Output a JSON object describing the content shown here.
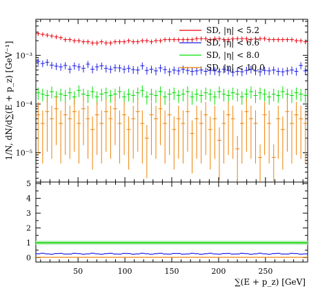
{
  "chart_data": [
    {
      "type": "scatter",
      "title": "",
      "ylabel": "1/N, dN/d∑(E + p_z) [GeV⁻¹]",
      "xlim": [
        5,
        295
      ],
      "ylim": [
        2.5e-06,
        0.0055
      ],
      "yscale": "log",
      "y_tick_labels": [
        "10⁻⁵",
        "10⁻⁴",
        "10⁻³"
      ],
      "legend_placement": "top-right",
      "series": [
        {
          "name": "SD, |η| < 5.2",
          "color": "#e8000b",
          "values": [
            0.0028,
            0.0027,
            0.0026,
            0.0025,
            0.0024,
            0.0023,
            0.0021,
            0.0021,
            0.002,
            0.002,
            0.0019,
            0.0019,
            0.0018,
            0.0018,
            0.0019,
            0.0018,
            0.0018,
            0.0019,
            0.0019,
            0.0019,
            0.002,
            0.0019,
            0.0019,
            0.002,
            0.002,
            0.0019,
            0.002,
            0.002,
            0.0021,
            0.0021,
            0.0021,
            0.0021,
            0.0021,
            0.0021,
            0.0021,
            0.0022,
            0.0022,
            0.0022,
            0.0021,
            0.0022,
            0.0022,
            0.0021,
            0.0021,
            0.0022,
            0.0022,
            0.0022,
            0.0022,
            0.0021,
            0.0022,
            0.0022,
            0.0022,
            0.0021,
            0.0021,
            0.0021,
            0.0021,
            0.0021,
            0.0021,
            0.002,
            0.002,
            0.0019
          ]
        },
        {
          "name": "SD, |η| < 6.6",
          "color": "#1a1ae6",
          "values": [
            0.00075,
            0.00068,
            0.00072,
            0.00063,
            0.0006,
            0.00058,
            0.00062,
            0.00052,
            0.00061,
            0.00058,
            0.00054,
            0.00066,
            0.00052,
            0.00058,
            0.00061,
            0.00054,
            0.00052,
            0.00056,
            0.00055,
            0.00052,
            0.00054,
            0.00051,
            0.0005,
            0.00061,
            0.00049,
            0.00052,
            0.00048,
            0.00055,
            0.00051,
            0.00046,
            0.0005,
            0.00048,
            0.00052,
            0.00049,
            0.00047,
            0.00048,
            0.0005,
            0.00047,
            0.00049,
            0.00048,
            0.00046,
            0.00052,
            0.00049,
            0.00045,
            0.00047,
            0.00046,
            0.00049,
            0.00052,
            0.00048,
            0.00046,
            0.00049,
            0.00048,
            0.0005,
            0.00047,
            0.00046,
            0.00048,
            0.0005,
            0.00047,
            0.00062,
            0.00048
          ]
        },
        {
          "name": "SD, |η| < 8.0",
          "color": "#00dd00",
          "values": [
            0.00017,
            0.00016,
            0.00015,
            0.00018,
            0.00014,
            0.00016,
            0.00015,
            0.00017,
            0.00014,
            0.00019,
            0.00016,
            0.00015,
            0.00018,
            0.00014,
            0.00016,
            0.00017,
            0.00015,
            0.00016,
            0.00018,
            0.00014,
            0.00016,
            0.00015,
            0.00017,
            0.00019,
            0.00014,
            0.00016,
            0.00015,
            0.00018,
            0.00014,
            0.00016,
            0.00017,
            0.00015,
            0.00016,
            0.00018,
            0.00014,
            0.00016,
            0.00015,
            0.00017,
            0.00016,
            0.00014,
            0.00018,
            0.00016,
            0.00015,
            0.00017,
            0.00016,
            0.00014,
            0.00016,
            0.00018,
            0.00015,
            0.00017,
            0.00016,
            0.00014,
            0.00016,
            0.00015,
            0.00018,
            0.00016,
            0.00015,
            0.00017,
            0.00016,
            0.00015
          ]
        },
        {
          "name": "SD, |η| < 10.0",
          "color": "#ee8000",
          "values": [
            6e-05,
            4e-05,
            7e-05,
            5e-05,
            8e-05,
            4e-05,
            6e-05,
            5e-05,
            7e-05,
            4e-05,
            8e-05,
            5e-05,
            3e-05,
            6e-05,
            4e-05,
            7e-05,
            5e-05,
            8e-05,
            4e-05,
            6e-05,
            3e-05,
            5e-05,
            7e-05,
            4e-05,
            2e-05,
            6e-05,
            5e-05,
            8e-05,
            4e-05,
            6e-05,
            3e-05,
            5e-05,
            4e-05,
            7e-05,
            2.5e-05,
            5e-05,
            4e-05,
            6e-05,
            3e-05,
            5e-05,
            1.8e-05,
            4e-05,
            6e-05,
            5e-05,
            1.2e-05,
            4e-05,
            7e-05,
            5e-05,
            4e-05,
            8e-06,
            6e-05,
            4e-05,
            8e-06,
            5e-05,
            3e-05,
            7e-05,
            4e-05,
            6e-05,
            5e-05,
            4e-05
          ]
        }
      ]
    },
    {
      "type": "scatter",
      "xlabel": "∑(E + p_z) [GeV]",
      "xlim": [
        5,
        295
      ],
      "ylim": [
        -0.3,
        5.1
      ],
      "x_tick_labels": [
        "50",
        "100",
        "150",
        "200",
        "250"
      ],
      "y_tick_labels": [
        "0",
        "1",
        "2",
        "3",
        "4",
        "5"
      ],
      "ratio_series": [
        {
          "name": "SD, |η| < 5.2",
          "color": "#e8000b",
          "value": 1.0
        },
        {
          "name": "SD, |η| < 6.6",
          "color": "#1a1ae6",
          "value": 0.26
        },
        {
          "name": "SD, |η| < 8.0",
          "color": "#00dd00",
          "value": 1.0
        },
        {
          "name": "SD, |η| < 10.0",
          "color": "#ee8000",
          "value": 0.02
        }
      ]
    }
  ]
}
